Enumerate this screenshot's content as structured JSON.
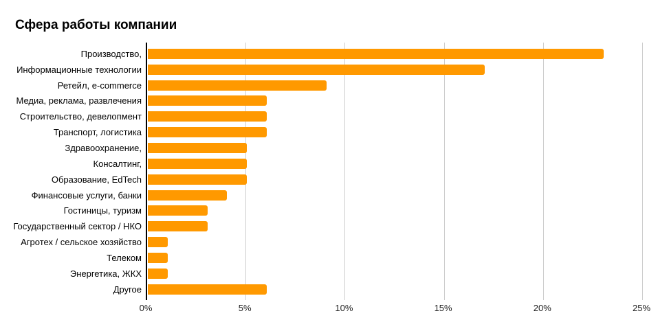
{
  "title": "Сфера работы компании",
  "colors": {
    "bar": "#FF9900",
    "gridline": "#CCCCCC",
    "axis": "#000000",
    "text": "#000000",
    "background": "#FFFFFF"
  },
  "chart_data": {
    "type": "bar",
    "orientation": "horizontal",
    "title": "Сфера работы компании",
    "categories": [
      "Производство,",
      "Информационные технологии",
      "Ретейл, e-commerce",
      "Медиа, реклама, развлечения",
      "Строительство, девелопмент",
      "Транспорт, логистика",
      "Здравоохранение,",
      "Консалтинг,",
      "Образование, EdTech",
      "Финансовые услуги, банки",
      "Гостиницы, туризм",
      "Государственный сектор / НКО",
      "Агротех / сельское хозяйство",
      "Телеком",
      "Энергетика, ЖКХ",
      "Другое"
    ],
    "values": [
      23,
      17,
      9,
      6,
      6,
      6,
      5,
      5,
      5,
      4,
      3,
      3,
      1,
      1,
      1,
      6
    ],
    "unit": "%",
    "xlabel": "",
    "ylabel": "",
    "xlim": [
      0,
      25
    ],
    "x_ticks": [
      "0%",
      "5%",
      "10%",
      "15%",
      "20%",
      "25%"
    ],
    "x_tick_values": [
      0,
      5,
      10,
      15,
      20,
      25
    ],
    "grid": true,
    "legend": "none",
    "bar_color": "#FF9900"
  }
}
